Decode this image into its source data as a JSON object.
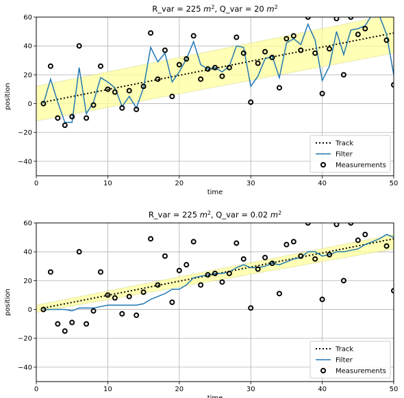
{
  "colors": {
    "filter": "#1f77b4",
    "band_fill": "#ffff9c",
    "band_edge": "#c8c878",
    "grid": "#b0b0b0",
    "track": "#000000",
    "measurement_edge": "#000000"
  },
  "chart_data": [
    {
      "type": "line",
      "title_parts": [
        "R_var = 225 ",
        "m",
        "2",
        ", Q_var = 20 ",
        "m",
        "2"
      ],
      "xlabel": "time",
      "ylabel": "position",
      "xlim": [
        0,
        50
      ],
      "ylim": [
        -50,
        60
      ],
      "xticks": [
        0,
        10,
        20,
        30,
        40,
        50
      ],
      "yticks": [
        -40,
        -20,
        0,
        20,
        40,
        60
      ],
      "grid": true,
      "legend_position": "lower-right",
      "legend": [
        "Track",
        "Filter",
        "Measurements"
      ],
      "series": [
        {
          "name": "Track",
          "style": "dotted",
          "x": [
            1,
            50
          ],
          "y": [
            1,
            49
          ]
        },
        {
          "name": "Filter",
          "style": "solid",
          "x": [
            1,
            2,
            3,
            4,
            5,
            6,
            7,
            8,
            9,
            10,
            11,
            12,
            13,
            14,
            15,
            16,
            17,
            18,
            19,
            20,
            21,
            22,
            23,
            24,
            25,
            26,
            27,
            28,
            29,
            30,
            31,
            32,
            33,
            34,
            35,
            36,
            37,
            38,
            39,
            40,
            41,
            42,
            43,
            44,
            45,
            46,
            47,
            48,
            49,
            50
          ],
          "y": [
            0,
            17,
            1,
            -13,
            -13,
            25,
            -7,
            1,
            18,
            15,
            11,
            -2,
            5,
            -3,
            11,
            39,
            29,
            35,
            15,
            22,
            31,
            43,
            27,
            24,
            25,
            22,
            26,
            40,
            39,
            12,
            19,
            31,
            33,
            18,
            42,
            45,
            41,
            55,
            44,
            16,
            26,
            50,
            34,
            51,
            52,
            54,
            62,
            61,
            48,
            20
          ]
        },
        {
          "name": "Measurements",
          "style": "marker",
          "x": [
            1,
            2,
            3,
            4,
            5,
            6,
            7,
            8,
            9,
            10,
            11,
            12,
            13,
            14,
            15,
            16,
            17,
            18,
            19,
            20,
            21,
            22,
            23,
            24,
            25,
            26,
            27,
            28,
            29,
            30,
            31,
            32,
            33,
            34,
            35,
            36,
            37,
            38,
            39,
            40,
            41,
            42,
            43,
            44,
            45,
            46,
            47,
            48,
            49,
            50
          ],
          "y": [
            0,
            26,
            -10,
            -15,
            -9,
            40,
            -10,
            -1,
            26,
            10,
            8,
            -3,
            9,
            -4,
            12,
            49,
            17,
            37,
            5,
            27,
            31,
            47,
            17,
            24,
            25,
            19,
            25,
            46,
            35,
            1,
            28,
            36,
            32,
            11,
            45,
            47,
            37,
            60,
            35,
            7,
            38,
            59,
            20,
            60,
            48,
            52,
            63,
            64,
            44,
            13
          ]
        }
      ],
      "uncertainty_band": {
        "x": [
          0,
          50
        ],
        "lower": [
          -12,
          35
        ],
        "upper": [
          12,
          62
        ]
      }
    },
    {
      "type": "line",
      "title_parts": [
        "R_var = 225 ",
        "m",
        "2",
        ", Q_var = 0.02 ",
        "m",
        "2"
      ],
      "xlabel": "time",
      "ylabel": "position",
      "xlim": [
        0,
        50
      ],
      "ylim": [
        -50,
        60
      ],
      "xticks": [
        0,
        10,
        20,
        30,
        40,
        50
      ],
      "yticks": [
        -40,
        -20,
        0,
        20,
        40,
        60
      ],
      "grid": true,
      "legend_position": "lower-right",
      "legend": [
        "Track",
        "Filter",
        "Measurements"
      ],
      "series": [
        {
          "name": "Track",
          "style": "dotted",
          "x": [
            1,
            50
          ],
          "y": [
            1,
            49
          ]
        },
        {
          "name": "Filter",
          "style": "solid",
          "x": [
            1,
            2,
            3,
            4,
            5,
            6,
            7,
            8,
            9,
            10,
            11,
            12,
            13,
            14,
            15,
            16,
            17,
            18,
            19,
            20,
            21,
            22,
            23,
            24,
            25,
            26,
            27,
            28,
            29,
            30,
            31,
            32,
            33,
            34,
            35,
            36,
            37,
            38,
            39,
            40,
            41,
            42,
            43,
            44,
            45,
            46,
            47,
            48,
            49,
            50
          ],
          "y": [
            0,
            0,
            0,
            0,
            -1,
            1,
            1,
            1,
            2,
            3,
            3,
            3,
            3,
            3,
            4,
            7,
            9,
            11,
            14,
            14,
            17,
            22,
            23,
            24,
            25,
            25,
            26,
            29,
            31,
            29,
            29,
            30,
            32,
            31,
            33,
            35,
            36,
            40,
            40,
            37,
            38,
            40,
            40,
            41,
            42,
            45,
            47,
            49,
            52,
            50
          ]
        },
        {
          "name": "Measurements",
          "style": "marker",
          "x": [
            1,
            2,
            3,
            4,
            5,
            6,
            7,
            8,
            9,
            10,
            11,
            12,
            13,
            14,
            15,
            16,
            17,
            18,
            19,
            20,
            21,
            22,
            23,
            24,
            25,
            26,
            27,
            28,
            29,
            30,
            31,
            32,
            33,
            34,
            35,
            36,
            37,
            38,
            39,
            40,
            41,
            42,
            43,
            44,
            45,
            46,
            47,
            48,
            49,
            50
          ],
          "y": [
            0,
            26,
            -10,
            -15,
            -9,
            40,
            -10,
            -1,
            26,
            10,
            8,
            -3,
            9,
            -4,
            12,
            49,
            17,
            37,
            5,
            27,
            31,
            47,
            17,
            24,
            25,
            19,
            25,
            46,
            35,
            1,
            28,
            36,
            32,
            11,
            45,
            47,
            37,
            60,
            35,
            7,
            38,
            59,
            20,
            60,
            48,
            52,
            63,
            64,
            44,
            13
          ]
        }
      ],
      "uncertainty_band": {
        "x": [
          0,
          50
        ],
        "lower": [
          -2,
          42
        ],
        "upper": [
          3,
          52
        ]
      }
    }
  ]
}
